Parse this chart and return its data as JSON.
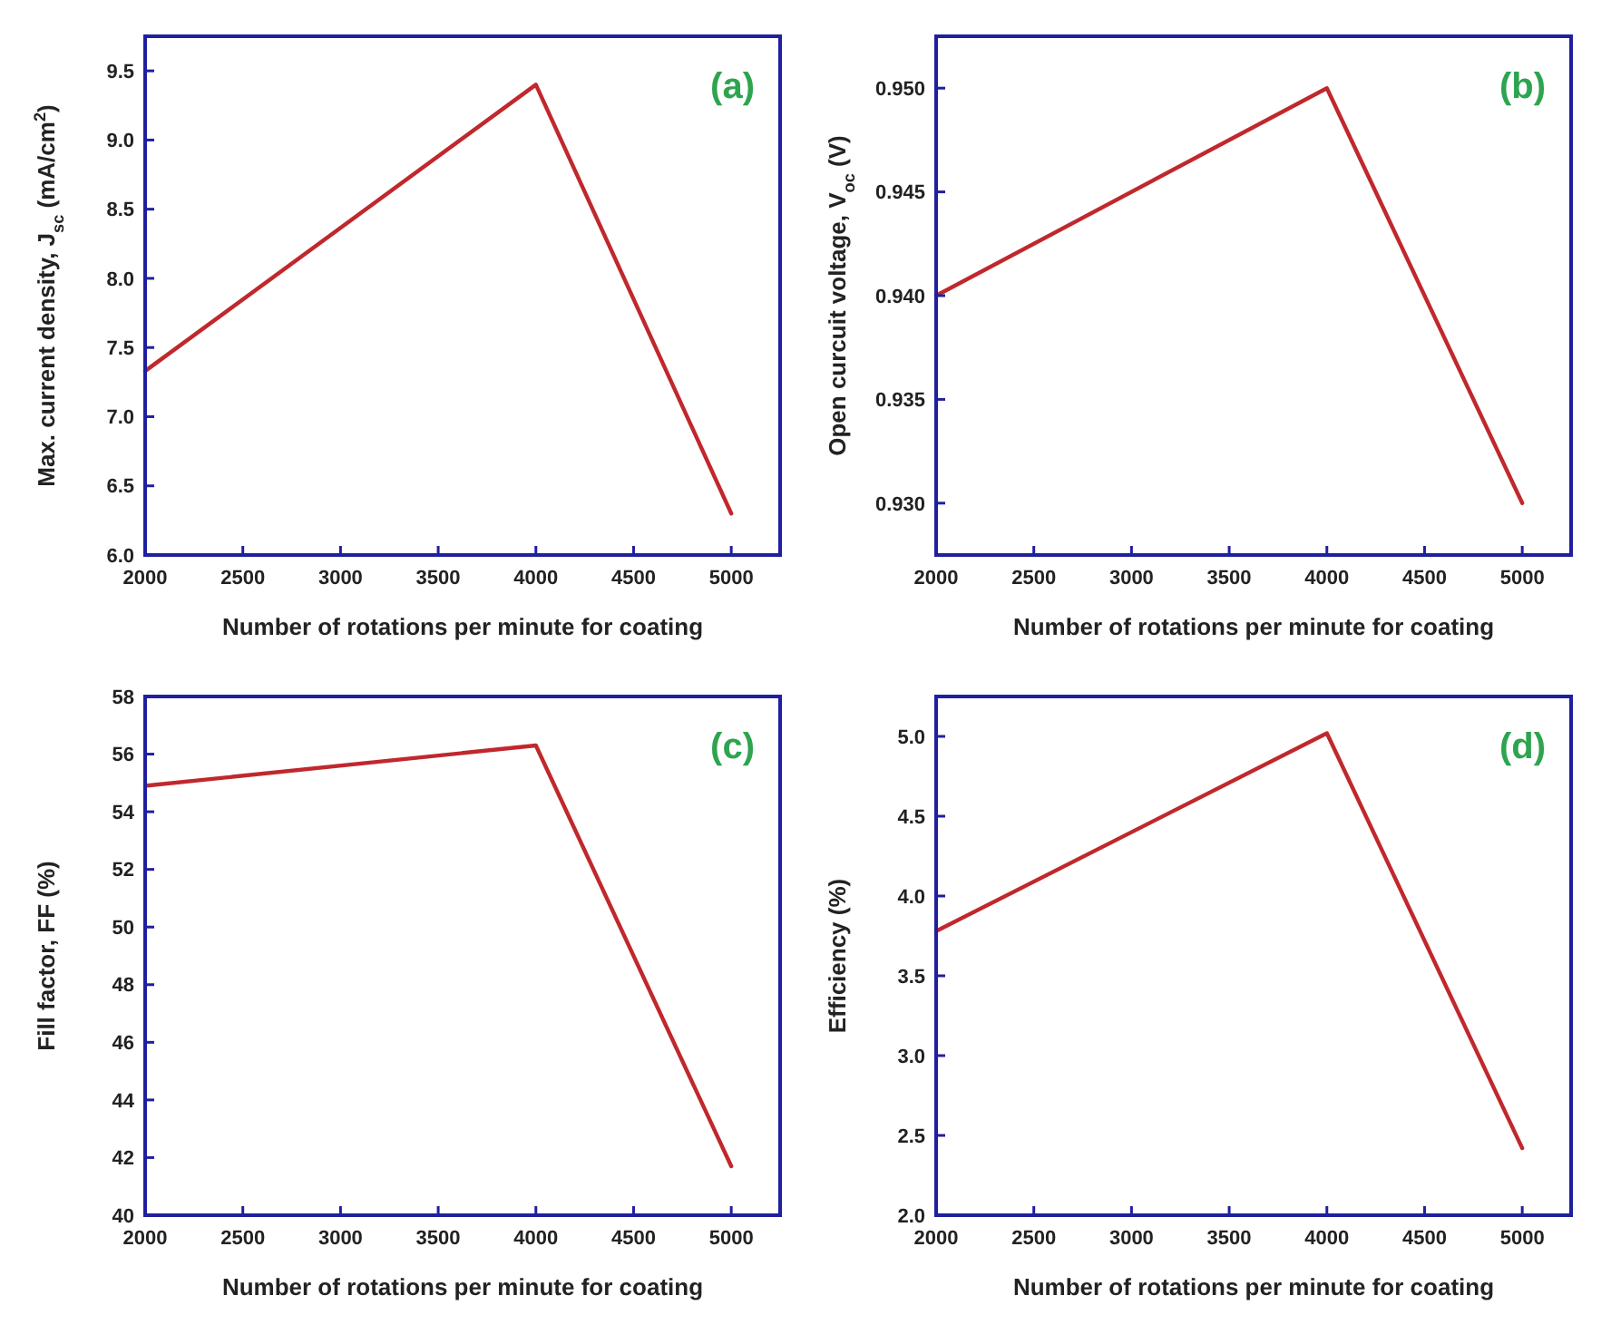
{
  "chart_data": [
    {
      "type": "line",
      "title": "(a)",
      "xlabel": "Number of rotations per minute for coating",
      "ylabel": "Max. current density, J$_{sc}$ (mA/cm$^{2}$)",
      "x": [
        2000,
        4000,
        5000
      ],
      "series": [
        {
          "color": "#c0282d",
          "values": [
            7.33,
            9.4,
            6.3
          ]
        }
      ],
      "xlim": [
        2000,
        5250
      ],
      "ylim": [
        6.0,
        9.75
      ],
      "xticks": [
        2000,
        2500,
        3000,
        3500,
        4000,
        4500,
        5000
      ],
      "yticks": [
        {
          "value": 6,
          "label": "6.0"
        },
        6.5,
        {
          "value": 7,
          "label": "7.0"
        },
        7.5,
        {
          "value": 8,
          "label": "8.0"
        },
        8.5,
        {
          "value": 9,
          "label": "9.0"
        },
        9.5
      ],
      "grid": false,
      "marker": "none",
      "line_style": "solid"
    },
    {
      "type": "line",
      "title": "(b)",
      "xlabel": "Number of rotations per minute for coating",
      "ylabel": "Open curcuit voltage, V$_{oc}$ (V)",
      "x": [
        2000,
        4000,
        5000
      ],
      "series": [
        {
          "color": "#c0282d",
          "values": [
            0.94,
            0.95,
            0.93
          ]
        }
      ],
      "xlim": [
        2000,
        5250
      ],
      "ylim": [
        0.9275,
        0.9525
      ],
      "xticks": [
        2000,
        2500,
        3000,
        3500,
        4000,
        4500,
        5000
      ],
      "yticks": [
        {
          "value": 0.93,
          "label": "0.930"
        },
        0.935,
        {
          "value": 0.94,
          "label": "0.940"
        },
        0.945,
        {
          "value": 0.95,
          "label": "0.950"
        }
      ],
      "grid": false,
      "marker": "none",
      "line_style": "solid"
    },
    {
      "type": "line",
      "title": "(c)",
      "xlabel": "Number of rotations per minute for coating",
      "ylabel": "Fill factor, FF (%)",
      "x": [
        2000,
        4000,
        5000
      ],
      "series": [
        {
          "color": "#c0282d",
          "values": [
            54.9,
            56.3,
            41.7
          ]
        }
      ],
      "xlim": [
        2000,
        5250
      ],
      "ylim": [
        40,
        58
      ],
      "xticks": [
        2000,
        2500,
        3000,
        3500,
        4000,
        4500,
        5000
      ],
      "yticks": [
        40,
        42,
        44,
        46,
        48,
        50,
        52,
        54,
        56,
        58
      ],
      "grid": false,
      "marker": "none",
      "line_style": "solid"
    },
    {
      "type": "line",
      "title": "(d)",
      "xlabel": "Number of rotations per minute for coating",
      "ylabel": "Efficiency (%)",
      "x": [
        2000,
        4000,
        5000
      ],
      "series": [
        {
          "color": "#c0282d",
          "values": [
            3.78,
            5.02,
            2.42
          ]
        }
      ],
      "xlim": [
        2000,
        5250
      ],
      "ylim": [
        2.0,
        5.25
      ],
      "xticks": [
        2000,
        2500,
        3000,
        3500,
        4000,
        4500,
        5000
      ],
      "yticks": [
        {
          "value": 2,
          "label": "2.0"
        },
        2.5,
        {
          "value": 3,
          "label": "3.0"
        },
        3.5,
        {
          "value": 4,
          "label": "4.0"
        },
        4.5,
        {
          "value": 5,
          "label": "5.0"
        }
      ],
      "grid": false,
      "marker": "none",
      "line_style": "solid"
    }
  ]
}
